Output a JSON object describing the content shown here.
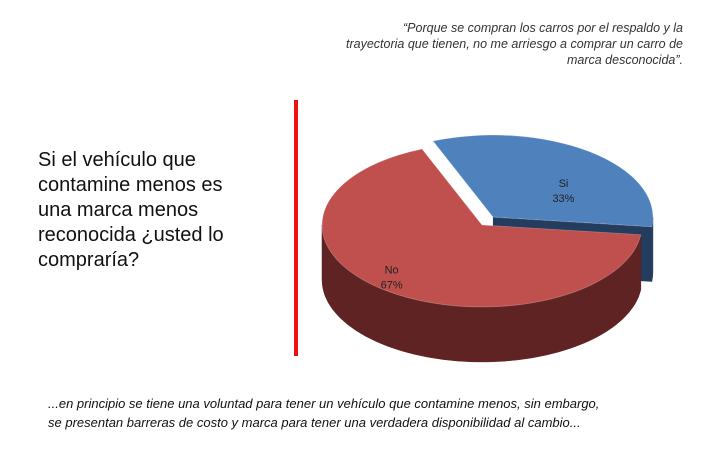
{
  "quote": [
    "“Porque se compran los carros por el respaldo y la",
    "trayectoria que tienen, no me arriesgo a comprar un carro de",
    "marca desconocida”."
  ],
  "question": [
    "Si el vehículo que",
    "contamine menos es",
    "una marca menos",
    "reconocida ¿usted lo",
    "compraría?"
  ],
  "conclusion": [
    "...en principio se tiene una voluntad para tener un vehículo que contamine menos, sin embargo,",
    "se presentan barreras de costo y marca para tener una verdadera disponibilidad al cambio..."
  ],
  "colors": {
    "divider": "#ee1111",
    "no_top": "#c0504d",
    "no_side": "#5e2322",
    "si_top": "#4f81bd",
    "si_side": "#243c5e"
  },
  "chart_data": {
    "type": "pie",
    "three_d": true,
    "categories": [
      "Si",
      "No"
    ],
    "values": [
      33,
      67
    ],
    "labels": [
      "33%",
      "67%"
    ],
    "colors": [
      "#4f81bd",
      "#c0504d"
    ],
    "exploded": "Si"
  }
}
